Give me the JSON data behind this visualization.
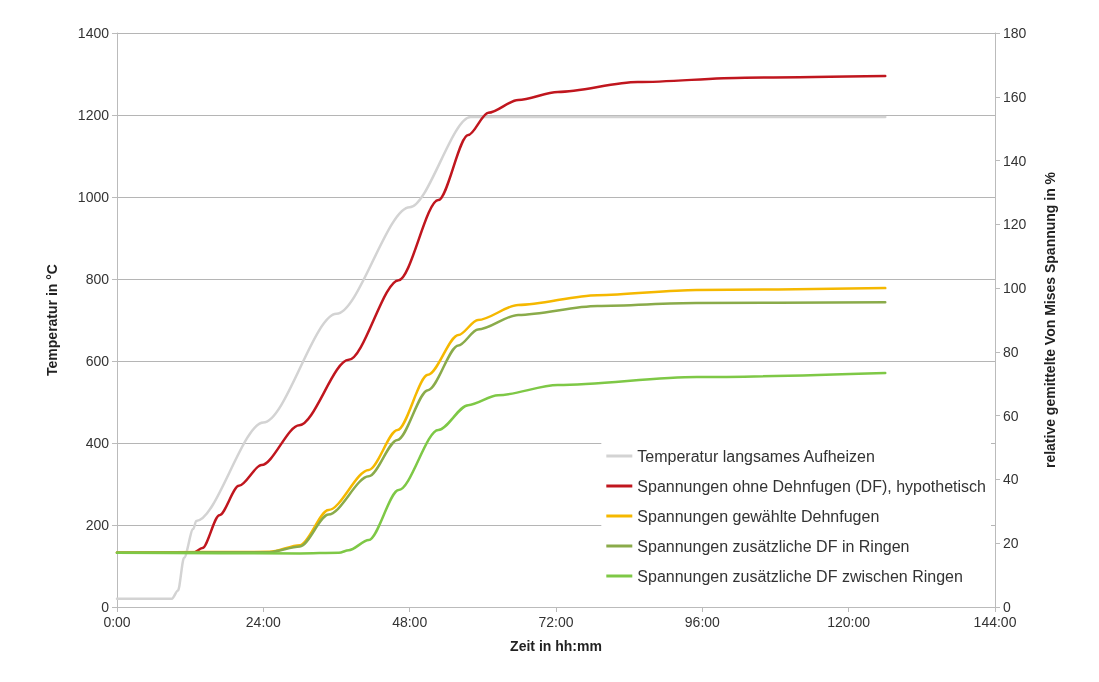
{
  "chart_data": {
    "type": "line",
    "xlabel": "Zeit in hh:mm",
    "ylabel": "Temperatur in °C",
    "y2label": "relative gemittelte Von Mises Spannung in %",
    "xlim": [
      0,
      144
    ],
    "xticks": [
      {
        "value": 0,
        "label": "0:00"
      },
      {
        "value": 24,
        "label": "24:00"
      },
      {
        "value": 48,
        "label": "48:00"
      },
      {
        "value": 72,
        "label": "72:00"
      },
      {
        "value": 96,
        "label": "96:00"
      },
      {
        "value": 120,
        "label": "120:00"
      },
      {
        "value": 144,
        "label": "144:00"
      }
    ],
    "ylim": [
      0,
      1400
    ],
    "yticks": [
      0,
      200,
      400,
      600,
      800,
      1000,
      1200,
      1400
    ],
    "y2lim": [
      0,
      180
    ],
    "y2ticks": [
      0,
      20,
      40,
      60,
      80,
      100,
      120,
      140,
      160,
      180
    ],
    "grid": "y",
    "legend": "bottom right",
    "marker": "none",
    "line_style": "solid",
    "series": [
      {
        "name": "Temperatur langsames Aufheizen",
        "color": "#d3d3d3",
        "x": [
          0,
          9,
          10,
          11,
          12.5,
          13,
          24,
          36,
          48,
          58,
          126
        ],
        "values": [
          20,
          20,
          40,
          120,
          190,
          210,
          450,
          715,
          975,
          1195,
          1195
        ]
      },
      {
        "name": "Spannungen ohne Dehnfugen (DF), hypothetisch",
        "color": "#c0161e",
        "axis": "y2",
        "x": [
          0,
          12.5,
          14,
          16.8,
          20,
          23.7,
          29.9,
          38,
          46.2,
          52.7,
          57.6,
          60.9,
          65.8,
          72.3,
          85.4,
          103,
          126
        ],
        "values": [
          17,
          17,
          18.5,
          28.8,
          38,
          44.5,
          57,
          77.5,
          102.5,
          127.6,
          148,
          155,
          159,
          161.5,
          164.6,
          166,
          166.5
        ]
      },
      {
        "name": "Spannungen gewählte Dehnfugen",
        "color": "#f5b800",
        "axis": "y2",
        "x": [
          0,
          25,
          30,
          34.7,
          41.3,
          46,
          51,
          56,
          59.2,
          65.8,
          78.8,
          95,
          126
        ],
        "values": [
          17,
          17.3,
          19.4,
          30.4,
          43,
          55.5,
          72.8,
          85.3,
          90,
          94.7,
          97.8,
          99.4,
          100
        ]
      },
      {
        "name": "Spannungen zusätzliche DF in Ringen",
        "color": "#8aab4a",
        "axis": "y2",
        "x": [
          0,
          25,
          30,
          34.7,
          41.3,
          46,
          51,
          56,
          59.2,
          65.8,
          78.8,
          95,
          126
        ],
        "values": [
          17,
          17.2,
          19,
          29,
          41,
          52.4,
          68,
          82,
          87,
          91.6,
          94.4,
          95.3,
          95.6
        ]
      },
      {
        "name": "Spannungen zusätzliche DF zwischen Ringen",
        "color": "#7ec846",
        "axis": "y2",
        "x": [
          0,
          30,
          36.4,
          38,
          41.3,
          46.2,
          52.7,
          57.6,
          62.5,
          72.3,
          95.1,
          126
        ],
        "values": [
          17,
          16.8,
          17,
          17.8,
          21,
          36.7,
          55.5,
          63.3,
          66.4,
          69.6,
          72.1,
          73.4
        ]
      }
    ]
  }
}
